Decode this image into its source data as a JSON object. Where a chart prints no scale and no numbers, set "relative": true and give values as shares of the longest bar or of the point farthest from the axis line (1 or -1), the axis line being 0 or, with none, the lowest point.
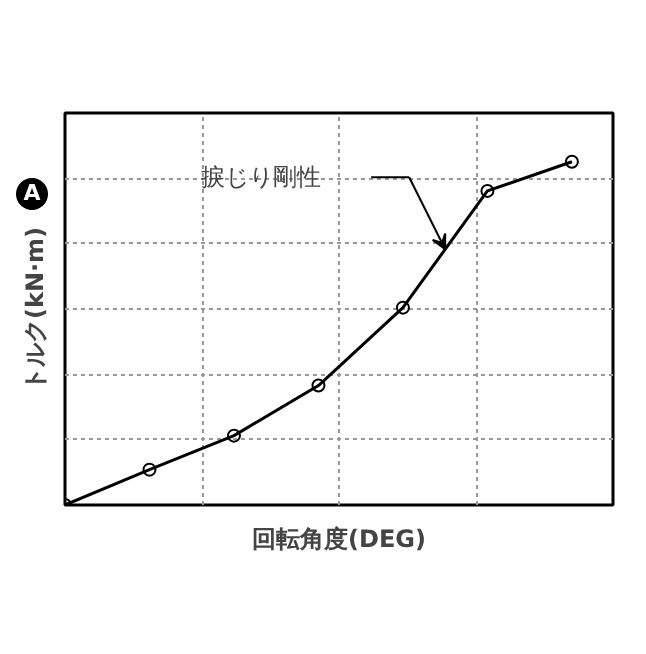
{
  "chart_data": {
    "type": "line",
    "relative": true,
    "xlabel": "回転角度(DEG)",
    "ylabel": "トルク(kN·m)",
    "categories": [
      null,
      null,
      null,
      null,
      null,
      null,
      null
    ],
    "series": [
      {
        "color": "#000000",
        "values": [
          0,
          0.103,
          0.202,
          0.348,
          0.575,
          0.915,
          1
        ]
      }
    ],
    "marker": "circle",
    "line_style": "solid",
    "grid": true,
    "annotations": [
      "A",
      "捩じり剛性"
    ]
  }
}
